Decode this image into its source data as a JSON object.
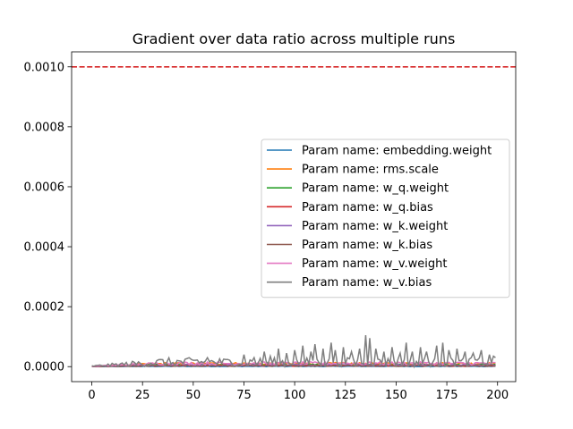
{
  "chart_data": {
    "type": "line",
    "title": "Gradient over data ratio across multiple runs",
    "xlabel": "",
    "ylabel": "",
    "xlim": [
      -9.95,
      208.95
    ],
    "ylim": [
      -5e-05,
      0.00105
    ],
    "xticks": [
      0,
      25,
      50,
      75,
      100,
      125,
      150,
      175,
      200
    ],
    "yticks": [
      0.0,
      0.0002,
      0.0004,
      0.0006,
      0.0008,
      0.001
    ],
    "ytick_labels": [
      "0.0000",
      "0.0002",
      "0.0004",
      "0.0006",
      "0.0008",
      "0.0010"
    ],
    "grid": false,
    "legend_position": "center-right",
    "threshold_line": {
      "y": 0.001,
      "color": "#d62728",
      "style": "dashed"
    },
    "series": [
      {
        "name": "Param name: embedding.weight",
        "color": "#1f77b4",
        "base": 1e-06,
        "noise": 1e-06,
        "spikes": []
      },
      {
        "name": "Param name: rms.scale",
        "color": "#ff7f0e",
        "base": 1e-05,
        "noise": 4e-06,
        "spikes": []
      },
      {
        "name": "Param name: w_q.weight",
        "color": "#2ca02c",
        "base": 6e-06,
        "noise": 3e-06,
        "spikes": []
      },
      {
        "name": "Param name: w_q.bias",
        "color": "#d62728",
        "base": 4e-06,
        "noise": 2.5e-06,
        "spikes": []
      },
      {
        "name": "Param name: w_k.weight",
        "color": "#9467bd",
        "base": 5e-06,
        "noise": 3e-06,
        "spikes": []
      },
      {
        "name": "Param name: w_k.bias",
        "color": "#8c564b",
        "base": 3e-06,
        "noise": 2e-06,
        "spikes": []
      },
      {
        "name": "Param name: w_v.weight",
        "color": "#e377c2",
        "base": 1.1e-05,
        "noise": 5e-06,
        "spikes": []
      },
      {
        "name": "Param name: w_v.bias",
        "color": "#7f7f7f",
        "base": 1.5e-05,
        "noise": 1.5e-05,
        "spikes": [
          [
            52,
            2.2e-05
          ],
          [
            57,
            3e-05
          ],
          [
            65,
            2.5e-05
          ],
          [
            75,
            4e-05
          ],
          [
            80,
            3e-05
          ],
          [
            85,
            5e-05
          ],
          [
            88,
            3.5e-05
          ],
          [
            92,
            6e-05
          ],
          [
            96,
            4.5e-05
          ],
          [
            100,
            5.5e-05
          ],
          [
            104,
            7e-05
          ],
          [
            108,
            5e-05
          ],
          [
            110,
            7.5e-05
          ],
          [
            114,
            6e-05
          ],
          [
            118,
            8e-05
          ],
          [
            120,
            5.5e-05
          ],
          [
            124,
            6.5e-05
          ],
          [
            128,
            5e-05
          ],
          [
            132,
            6e-05
          ],
          [
            135,
            0.000105
          ],
          [
            137,
            9.5e-05
          ],
          [
            140,
            6e-05
          ],
          [
            144,
            5e-05
          ],
          [
            148,
            6.5e-05
          ],
          [
            152,
            4.5e-05
          ],
          [
            155,
            8e-05
          ],
          [
            158,
            5e-05
          ],
          [
            162,
            6.5e-05
          ],
          [
            165,
            5e-05
          ],
          [
            170,
            7e-05
          ],
          [
            173,
            8e-05
          ],
          [
            176,
            5.5e-05
          ],
          [
            180,
            6e-05
          ],
          [
            184,
            5e-05
          ],
          [
            188,
            4.5e-05
          ],
          [
            192,
            5.5e-05
          ],
          [
            196,
            4e-05
          ],
          [
            198,
            3.5e-05
          ]
        ]
      }
    ]
  }
}
